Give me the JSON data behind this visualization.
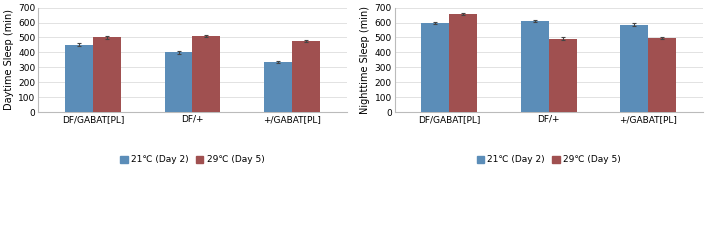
{
  "categories": [
    "DF/GABAT[PL]",
    "DF/+",
    "+/GABAT[PL]"
  ],
  "daytime": {
    "blue": [
      450,
      400,
      333
    ],
    "red": [
      500,
      510,
      478
    ],
    "blue_err": [
      10,
      8,
      7
    ],
    "red_err": [
      8,
      10,
      7
    ]
  },
  "nighttime": {
    "blue": [
      595,
      610,
      585
    ],
    "red": [
      658,
      493,
      498
    ],
    "blue_err": [
      7,
      7,
      9
    ],
    "red_err": [
      9,
      8,
      7
    ]
  },
  "blue_color": "#5B8DB8",
  "red_color": "#A05050",
  "ylabel_left": "Daytime Sleep (min)",
  "ylabel_right": "Nighttime Sleep (min)",
  "ylim": [
    0,
    700
  ],
  "yticks": [
    0,
    100,
    200,
    300,
    400,
    500,
    600,
    700
  ],
  "legend_blue": "21℃ (Day 2)",
  "legend_red": "29℃ (Day 5)",
  "bar_width": 0.28,
  "figsize": [
    7.07,
    2.36
  ],
  "dpi": 100
}
